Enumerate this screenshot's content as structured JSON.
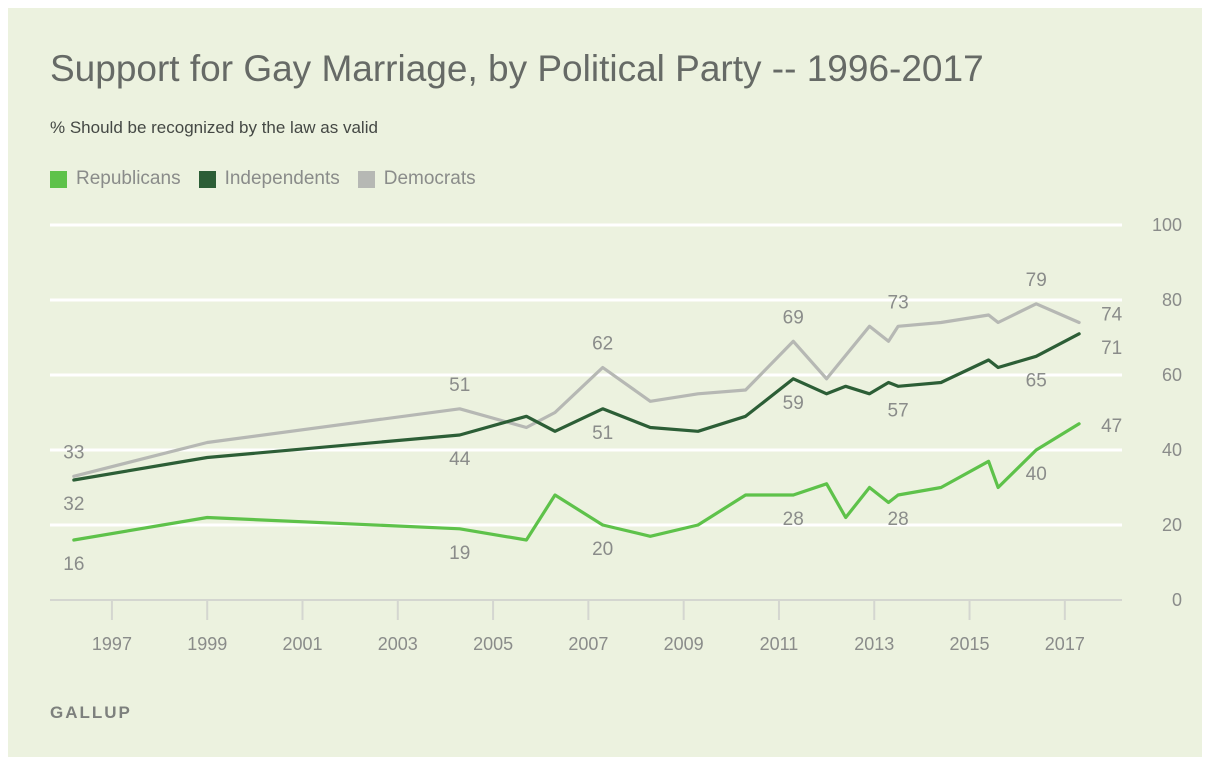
{
  "colors": {
    "background": "#ecf2df",
    "republicans": "#5ec24a",
    "independents": "#2c5e36",
    "democrats": "#b6b8b4",
    "grid": "#ffffff"
  },
  "source": "GALLUP",
  "chart_data": {
    "type": "line",
    "title": "Support for Gay Marriage, by Political Party -- 1996-2017",
    "subtitle": "% Should be recognized by the law as valid",
    "xlim": [
      1995.7,
      2018.2
    ],
    "ylim": [
      0,
      100
    ],
    "y_ticks": [
      "0",
      "20",
      "40",
      "60",
      "80",
      "100"
    ],
    "x_ticks": [
      "1997",
      "1999",
      "2001",
      "2003",
      "2005",
      "2007",
      "2009",
      "2011",
      "2013",
      "2015",
      "2017"
    ],
    "y_axis_position": "right",
    "grid": true,
    "legend_position": "top-left",
    "series": [
      {
        "name": "Republicans",
        "color": "#5ec24a",
        "points": [
          [
            1996.2,
            16
          ],
          [
            1999.0,
            22
          ],
          [
            2004.3,
            19
          ],
          [
            2005.7,
            16
          ],
          [
            2006.3,
            28
          ],
          [
            2007.3,
            20
          ],
          [
            2008.3,
            17
          ],
          [
            2009.3,
            20
          ],
          [
            2010.3,
            28
          ],
          [
            2011.3,
            28
          ],
          [
            2012.0,
            31
          ],
          [
            2012.4,
            22
          ],
          [
            2012.9,
            30
          ],
          [
            2013.3,
            26
          ],
          [
            2013.5,
            28
          ],
          [
            2014.4,
            30
          ],
          [
            2015.4,
            37
          ],
          [
            2015.6,
            30
          ],
          [
            2016.4,
            40
          ],
          [
            2017.3,
            47
          ]
        ]
      },
      {
        "name": "Independents",
        "color": "#2c5e36",
        "points": [
          [
            1996.2,
            32
          ],
          [
            1999.0,
            38
          ],
          [
            2004.3,
            44
          ],
          [
            2005.7,
            49
          ],
          [
            2006.3,
            45
          ],
          [
            2007.3,
            51
          ],
          [
            2008.3,
            46
          ],
          [
            2009.3,
            45
          ],
          [
            2010.3,
            49
          ],
          [
            2011.3,
            59
          ],
          [
            2012.0,
            55
          ],
          [
            2012.4,
            57
          ],
          [
            2012.9,
            55
          ],
          [
            2013.3,
            58
          ],
          [
            2013.5,
            57
          ],
          [
            2014.4,
            58
          ],
          [
            2015.4,
            64
          ],
          [
            2015.6,
            62
          ],
          [
            2016.4,
            65
          ],
          [
            2017.3,
            71
          ]
        ]
      },
      {
        "name": "Democrats",
        "color": "#b6b8b4",
        "points": [
          [
            1996.2,
            33
          ],
          [
            1999.0,
            42
          ],
          [
            2004.3,
            51
          ],
          [
            2005.7,
            46
          ],
          [
            2006.3,
            50
          ],
          [
            2007.3,
            62
          ],
          [
            2008.3,
            53
          ],
          [
            2009.3,
            55
          ],
          [
            2010.3,
            56
          ],
          [
            2011.3,
            69
          ],
          [
            2012.0,
            59
          ],
          [
            2012.9,
            73
          ],
          [
            2013.3,
            69
          ],
          [
            2013.5,
            73
          ],
          [
            2014.4,
            74
          ],
          [
            2015.4,
            76
          ],
          [
            2015.6,
            74
          ],
          [
            2016.4,
            79
          ],
          [
            2017.3,
            74
          ]
        ]
      }
    ],
    "annotations": [
      {
        "series": "Democrats",
        "x": 1996.2,
        "y": 33,
        "text": "33",
        "pos": "above"
      },
      {
        "series": "Democrats",
        "x": 2004.3,
        "y": 51,
        "text": "51",
        "pos": "above"
      },
      {
        "series": "Democrats",
        "x": 2007.3,
        "y": 62,
        "text": "62",
        "pos": "above"
      },
      {
        "series": "Democrats",
        "x": 2011.3,
        "y": 69,
        "text": "69",
        "pos": "above"
      },
      {
        "series": "Democrats",
        "x": 2013.5,
        "y": 73,
        "text": "73",
        "pos": "above"
      },
      {
        "series": "Democrats",
        "x": 2016.4,
        "y": 79,
        "text": "79",
        "pos": "above"
      },
      {
        "series": "Democrats",
        "x": 2017.3,
        "y": 74,
        "text": "74",
        "pos": "above"
      },
      {
        "series": "Independents",
        "x": 1996.2,
        "y": 32,
        "text": "32",
        "pos": "below"
      },
      {
        "series": "Independents",
        "x": 2004.3,
        "y": 44,
        "text": "44",
        "pos": "below"
      },
      {
        "series": "Independents",
        "x": 2007.3,
        "y": 51,
        "text": "51",
        "pos": "below"
      },
      {
        "series": "Independents",
        "x": 2011.3,
        "y": 59,
        "text": "59",
        "pos": "below"
      },
      {
        "series": "Independents",
        "x": 2013.5,
        "y": 57,
        "text": "57",
        "pos": "below"
      },
      {
        "series": "Independents",
        "x": 2016.4,
        "y": 65,
        "text": "65",
        "pos": "below"
      },
      {
        "series": "Independents",
        "x": 2017.3,
        "y": 71,
        "text": "71",
        "pos": "below"
      },
      {
        "series": "Republicans",
        "x": 1996.2,
        "y": 16,
        "text": "16",
        "pos": "below"
      },
      {
        "series": "Republicans",
        "x": 2004.3,
        "y": 19,
        "text": "19",
        "pos": "below"
      },
      {
        "series": "Republicans",
        "x": 2007.3,
        "y": 20,
        "text": "20",
        "pos": "below"
      },
      {
        "series": "Republicans",
        "x": 2011.3,
        "y": 28,
        "text": "28",
        "pos": "below"
      },
      {
        "series": "Republicans",
        "x": 2013.5,
        "y": 28,
        "text": "28",
        "pos": "below"
      },
      {
        "series": "Republicans",
        "x": 2016.4,
        "y": 40,
        "text": "40",
        "pos": "below"
      },
      {
        "series": "Republicans",
        "x": 2017.3,
        "y": 47,
        "text": "47",
        "pos": "above"
      }
    ]
  }
}
